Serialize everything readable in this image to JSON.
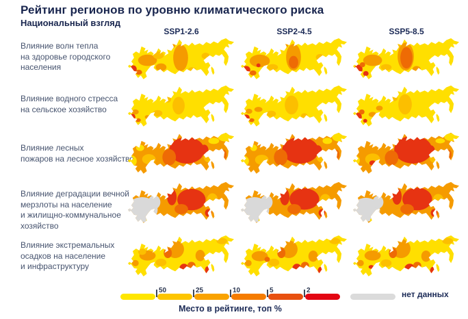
{
  "header": {
    "title": "Рейтинг регионов по уровню климатического риска",
    "subtitle": "Национальный взгляд"
  },
  "scenarios": [
    "SSP1-2.6",
    "SSP2-4.5",
    "SSP5-8.5"
  ],
  "risk_rows": [
    {
      "label": "Влияние волн тепла\nна здоровье городского\nнаселения"
    },
    {
      "label": "Влияние водного стресса\nна сельское хозяйство"
    },
    {
      "label": "Влияние лесных\nпожаров на лесное хозяйство"
    },
    {
      "label": "Влияние деградации вечной\nмерзлоты на население\nи жилищно-коммунальное\nхозяйство"
    },
    {
      "label": "Влияние экстремальных\nосадков на население\nи инфраструктуру"
    }
  ],
  "palette": {
    "y": "#FFDF00",
    "a": "#FCBF00",
    "o": "#F59B00",
    "d": "#EE6B05",
    "r": "#E63312",
    "g": "#D9D9D9",
    "navy": "#1B2A56",
    "label_gray_blue": "#46536E"
  },
  "legend": {
    "ticks": [
      "50",
      "25",
      "10",
      "5",
      "2"
    ],
    "caption": "Место в рейтинге, топ %",
    "no_data_label": "нет данных",
    "segment_colors": [
      "#FFE600",
      "#FDC500",
      "#F9A200",
      "#F57C00",
      "#E8500F",
      "#E30613"
    ]
  },
  "map_cells": [
    [
      {
        "base": "y",
        "patches": [
          [
            "o",
            79,
            33,
            11,
            21
          ],
          [
            "o",
            30,
            37,
            14,
            9
          ],
          [
            "a",
            46,
            29,
            8,
            6
          ],
          [
            "o",
            50,
            48,
            8,
            6
          ],
          [
            "r",
            9,
            51,
            5,
            6
          ],
          [
            "d",
            17,
            56,
            5,
            4
          ],
          [
            "o",
            66,
            13,
            5,
            5
          ],
          [
            "a",
            96,
            52,
            6,
            4
          ],
          [
            "a",
            116,
            30,
            6,
            5
          ]
        ]
      },
      {
        "base": "y",
        "patches": [
          [
            "o",
            79,
            32,
            11,
            21
          ],
          [
            "d",
            79,
            40,
            7,
            10
          ],
          [
            "o",
            29,
            38,
            15,
            10
          ],
          [
            "r",
            9,
            52,
            6,
            6
          ],
          [
            "d",
            19,
            57,
            5,
            4
          ],
          [
            "r",
            27,
            45,
            3,
            3
          ],
          [
            "a",
            48,
            48,
            8,
            5
          ],
          [
            "o",
            66,
            13,
            5,
            5
          ],
          [
            "a",
            118,
            32,
            6,
            5
          ]
        ]
      },
      {
        "base": "y",
        "patches": [
          [
            "o",
            79,
            31,
            12,
            22
          ],
          [
            "d",
            80,
            33,
            9,
            17
          ],
          [
            "o",
            30,
            37,
            14,
            9
          ],
          [
            "r",
            9,
            51,
            6,
            7
          ],
          [
            "r",
            20,
            58,
            4,
            4
          ],
          [
            "d",
            15,
            44,
            4,
            4
          ],
          [
            "a",
            50,
            48,
            8,
            5
          ],
          [
            "o",
            95,
            51,
            6,
            5
          ],
          [
            "a",
            66,
            13,
            5,
            5
          ]
        ]
      }
    ],
    [
      {
        "base": "y",
        "patches": [
          [
            "a",
            76,
            34,
            9,
            14
          ],
          [
            "o",
            12,
            44,
            5,
            4
          ],
          [
            "r",
            8,
            52,
            4,
            5
          ],
          [
            "d",
            16,
            57,
            4,
            3
          ],
          [
            "a",
            45,
            46,
            7,
            5
          ],
          [
            "o",
            30,
            52,
            4,
            3
          ],
          [
            "a",
            60,
            24,
            5,
            5
          ]
        ]
      },
      {
        "base": "y",
        "patches": [
          [
            "a",
            76,
            33,
            10,
            15
          ],
          [
            "o",
            13,
            43,
            5,
            4
          ],
          [
            "r",
            9,
            53,
            5,
            5
          ],
          [
            "d",
            17,
            57,
            4,
            3
          ],
          [
            "o",
            27,
            40,
            6,
            4
          ],
          [
            "a",
            46,
            47,
            7,
            5
          ],
          [
            "a",
            95,
            50,
            5,
            4
          ]
        ]
      },
      {
        "base": "y",
        "patches": [
          [
            "a",
            78,
            32,
            10,
            16
          ],
          [
            "r",
            9,
            52,
            5,
            7
          ],
          [
            "r",
            19,
            58,
            3,
            3
          ],
          [
            "d",
            14,
            44,
            4,
            4
          ],
          [
            "o",
            30,
            48,
            6,
            4
          ],
          [
            "o",
            40,
            38,
            5,
            4
          ],
          [
            "a",
            62,
            22,
            5,
            5
          ]
        ]
      }
    ],
    [
      {
        "base": "o",
        "patches": [
          [
            "y",
            6,
            47,
            8,
            9
          ],
          [
            "y",
            19,
            26,
            6,
            5
          ],
          [
            "a",
            32,
            44,
            10,
            8
          ],
          [
            "r",
            88,
            30,
            26,
            21
          ],
          [
            "d",
            62,
            41,
            10,
            13
          ],
          [
            "y",
            146,
            9,
            12,
            7
          ],
          [
            "y",
            128,
            15,
            8,
            5
          ],
          [
            "a",
            121,
            41,
            8,
            8
          ],
          [
            "d",
            143,
            37,
            4,
            8
          ],
          [
            "r",
            114,
            29,
            6,
            8
          ],
          [
            "y",
            56,
            16,
            6,
            5
          ]
        ]
      },
      {
        "base": "o",
        "patches": [
          [
            "y",
            6,
            47,
            7,
            8
          ],
          [
            "y",
            20,
            26,
            5,
            5
          ],
          [
            "a",
            32,
            45,
            10,
            8
          ],
          [
            "r",
            89,
            30,
            27,
            21
          ],
          [
            "d",
            60,
            41,
            10,
            13
          ],
          [
            "y",
            147,
            9,
            11,
            7
          ],
          [
            "y",
            129,
            15,
            7,
            5
          ],
          [
            "a",
            121,
            41,
            8,
            8
          ],
          [
            "r",
            115,
            30,
            6,
            8
          ],
          [
            "d",
            143,
            37,
            4,
            8
          ],
          [
            "y",
            55,
            16,
            5,
            4
          ]
        ]
      },
      {
        "base": "o",
        "patches": [
          [
            "y",
            5,
            46,
            6,
            7
          ],
          [
            "a",
            30,
            44,
            11,
            9
          ],
          [
            "r",
            90,
            29,
            28,
            22
          ],
          [
            "d",
            58,
            42,
            10,
            12
          ],
          [
            "r",
            30,
            50,
            5,
            4
          ],
          [
            "y",
            147,
            9,
            11,
            6
          ],
          [
            "y",
            130,
            15,
            7,
            4
          ],
          [
            "a",
            122,
            42,
            8,
            8
          ],
          [
            "r",
            116,
            30,
            6,
            8
          ],
          [
            "d",
            143,
            37,
            4,
            8
          ]
        ]
      }
    ],
    [
      {
        "base": "o",
        "patches": [
          [
            "g",
            22,
            46,
            23,
            20
          ],
          [
            "g",
            40,
            34,
            9,
            11
          ],
          [
            "y",
            45,
            60,
            9,
            5
          ],
          [
            "d",
            4,
            58,
            4,
            5
          ],
          [
            "r",
            95,
            30,
            21,
            17
          ],
          [
            "r",
            66,
            26,
            7,
            13
          ],
          [
            "d",
            80,
            45,
            10,
            8
          ],
          [
            "d",
            61,
            10,
            4,
            6
          ],
          [
            "a",
            126,
            30,
            8,
            10
          ],
          [
            "r",
            120,
            51,
            5,
            6
          ],
          [
            "y",
            33,
            63,
            5,
            4
          ]
        ]
      },
      {
        "base": "o",
        "patches": [
          [
            "g",
            21,
            46,
            22,
            20
          ],
          [
            "g",
            39,
            34,
            9,
            11
          ],
          [
            "y",
            44,
            60,
            9,
            5
          ],
          [
            "d",
            4,
            58,
            4,
            5
          ],
          [
            "r",
            95,
            29,
            22,
            17
          ],
          [
            "r",
            66,
            26,
            7,
            13
          ],
          [
            "d",
            80,
            45,
            10,
            8
          ],
          [
            "d",
            61,
            10,
            4,
            6
          ],
          [
            "a",
            126,
            31,
            8,
            10
          ],
          [
            "r",
            121,
            51,
            5,
            6
          ],
          [
            "y",
            32,
            63,
            5,
            4
          ]
        ]
      },
      {
        "base": "o",
        "patches": [
          [
            "g",
            20,
            46,
            21,
            19
          ],
          [
            "g",
            38,
            34,
            8,
            10
          ],
          [
            "y",
            43,
            60,
            8,
            5
          ],
          [
            "d",
            4,
            58,
            4,
            5
          ],
          [
            "r",
            96,
            29,
            22,
            18
          ],
          [
            "r",
            66,
            25,
            7,
            13
          ],
          [
            "d",
            81,
            45,
            10,
            8
          ],
          [
            "d",
            61,
            10,
            4,
            6
          ],
          [
            "a",
            127,
            31,
            8,
            10
          ],
          [
            "r",
            121,
            51,
            5,
            6
          ],
          [
            "y",
            31,
            63,
            5,
            4
          ]
        ]
      }
    ],
    [
      {
        "base": "y",
        "patches": [
          [
            "o",
            71,
            24,
            13,
            14
          ],
          [
            "o",
            30,
            34,
            12,
            8
          ],
          [
            "a",
            50,
            45,
            8,
            6
          ],
          [
            "d",
            60,
            30,
            6,
            8
          ],
          [
            "r",
            84,
            55,
            7,
            8
          ],
          [
            "d",
            95,
            50,
            6,
            6
          ],
          [
            "o",
            108,
            34,
            7,
            9
          ],
          [
            "r",
            119,
            57,
            4,
            6
          ],
          [
            "a",
            140,
            11,
            8,
            5
          ],
          [
            "o",
            12,
            46,
            5,
            5
          ],
          [
            "a",
            22,
            28,
            6,
            5
          ]
        ]
      },
      {
        "base": "y",
        "patches": [
          [
            "o",
            72,
            24,
            13,
            14
          ],
          [
            "o",
            29,
            35,
            12,
            8
          ],
          [
            "a",
            50,
            45,
            8,
            6
          ],
          [
            "d",
            61,
            30,
            6,
            8
          ],
          [
            "r",
            84,
            55,
            7,
            8
          ],
          [
            "d",
            96,
            50,
            6,
            6
          ],
          [
            "o",
            108,
            35,
            7,
            9
          ],
          [
            "r",
            119,
            58,
            4,
            6
          ],
          [
            "a",
            140,
            11,
            8,
            5
          ],
          [
            "o",
            12,
            46,
            5,
            5
          ],
          [
            "d",
            40,
            40,
            4,
            4
          ]
        ]
      },
      {
        "base": "y",
        "patches": [
          [
            "o",
            72,
            23,
            14,
            15
          ],
          [
            "o",
            30,
            34,
            12,
            8
          ],
          [
            "a",
            50,
            46,
            8,
            6
          ],
          [
            "d",
            60,
            30,
            6,
            8
          ],
          [
            "r",
            85,
            55,
            8,
            8
          ],
          [
            "d",
            96,
            50,
            6,
            6
          ],
          [
            "o",
            109,
            35,
            7,
            9
          ],
          [
            "r",
            119,
            58,
            4,
            6
          ],
          [
            "a",
            141,
            11,
            8,
            5
          ],
          [
            "o",
            12,
            46,
            5,
            5
          ],
          [
            "r",
            28,
            52,
            4,
            3
          ]
        ]
      }
    ]
  ],
  "chart_data": {
    "type": "heatmap",
    "subtype": "choropleth-small-multiples",
    "title": "Рейтинг регионов по уровню климатического риска",
    "subtitle": "Национальный взгляд",
    "columns": [
      "SSP1-2.6",
      "SSP2-4.5",
      "SSP5-8.5"
    ],
    "rows": [
      "Влияние волн тепла на здоровье городского населения",
      "Влияние водного стресса на сельское хозяйство",
      "Влияние лесных пожаров на лесное хозяйство",
      "Влияние деградации вечной мерзлоты на население и жилищно-коммунальное хозяйство",
      "Влияние экстремальных осадков на население и инфраструктуру"
    ],
    "legend": {
      "scale_ticks": [
        50,
        25,
        10,
        5,
        2
      ],
      "scale_label": "Место в рейтинге, топ %",
      "scale_direction": "yellow = top 50% (lower risk rank) to red = top 2% (highest risk rank)",
      "no_data": "нет данных"
    },
    "cells_dominant_pattern": [
      [
        "mostly yellow; orange central Siberia; red spots southwest",
        "mostly yellow; stronger orange central Siberia; red spots southwest",
        "yellow; dark-orange central Siberia; larger red southwest spots"
      ],
      [
        "mostly yellow; amber central Siberia; red/orange spots southwest",
        "mostly yellow; amber central Siberia; red spots southwest",
        "mostly yellow; amber central Siberia; enlarged red southwest cluster"
      ],
      [
        "orange overall; large red central-east Siberia; yellow west and northeast fringes",
        "orange overall; large red central-east Siberia; yellow fringes",
        "orange overall; largest red central-east Siberia; small yellow fringes"
      ],
      [
        "gray (no data) European part; orange north; large red central-east Siberia",
        "gray European part; orange north; large red central-east Siberia",
        "gray European part; orange north; large red central-east Siberia"
      ],
      [
        "yellow-orange mix; orange center-north; red spots south-central Siberia and far east",
        "yellow-orange mix; orange center-north; red spots south-central Siberia and far east",
        "yellow-orange mix; orange center-north; enlarged red south-central spots"
      ]
    ]
  }
}
